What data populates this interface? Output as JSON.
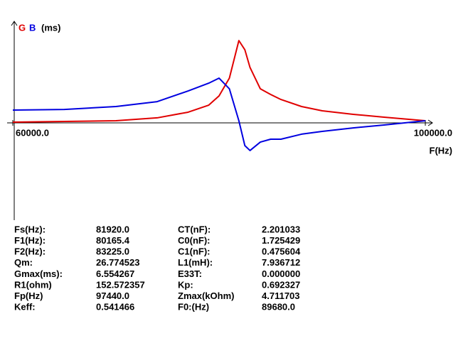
{
  "chart_data": {
    "type": "line",
    "x_label": "F(Hz)",
    "y_label": "(ms)",
    "x": [
      60000,
      65000,
      70000,
      74000,
      77000,
      79000,
      80000,
      81000,
      81920,
      82500,
      83000,
      84000,
      85000,
      86000,
      88000,
      90000,
      93000,
      96000,
      100000
    ],
    "series": [
      {
        "name": "G",
        "color": "#e00000",
        "values": [
          0.06,
          0.11,
          0.17,
          0.4,
          0.85,
          1.41,
          2.15,
          3.56,
          6.55,
          5.82,
          4.41,
          2.71,
          2.26,
          1.86,
          1.3,
          0.96,
          0.68,
          0.45,
          0.17
        ]
      },
      {
        "name": "B",
        "color": "#0000e0",
        "values": [
          1.02,
          1.07,
          1.3,
          1.69,
          2.54,
          3.16,
          3.56,
          2.71,
          0.17,
          -1.81,
          -2.2,
          -1.53,
          -1.3,
          -1.3,
          -0.9,
          -0.68,
          -0.4,
          -0.17,
          0.17
        ]
      }
    ],
    "xlim": [
      60000,
      100000
    ],
    "xticks": [
      {
        "value": 60000,
        "label": "60000.0"
      },
      {
        "value": 100000,
        "label": "100000.0"
      }
    ],
    "ylim": [
      -7.8,
      7.8
    ]
  },
  "parameters": {
    "rows": [
      [
        "Fs(Hz):",
        "81920.0",
        "CT(nF):",
        "2.201033"
      ],
      [
        "F1(Hz):",
        "80165.4",
        "C0(nF):",
        "1.725429"
      ],
      [
        "F2(Hz):",
        "83225.0",
        "C1(nF):",
        "0.475604"
      ],
      [
        "Qm:",
        "26.774523",
        "L1(mH):",
        "7.936712"
      ],
      [
        "Gmax(ms):",
        "6.554267",
        "E33T:",
        "0.000000"
      ],
      [
        "R1(ohm)",
        "152.572357",
        "Kp:",
        "0.692327"
      ],
      [
        "Fp(Hz)",
        "97440.0",
        "Zmax(kOhm)",
        "4.711703"
      ],
      [
        "Keff:",
        "0.541466",
        "F0:(Hz)",
        "89680.0"
      ]
    ]
  }
}
